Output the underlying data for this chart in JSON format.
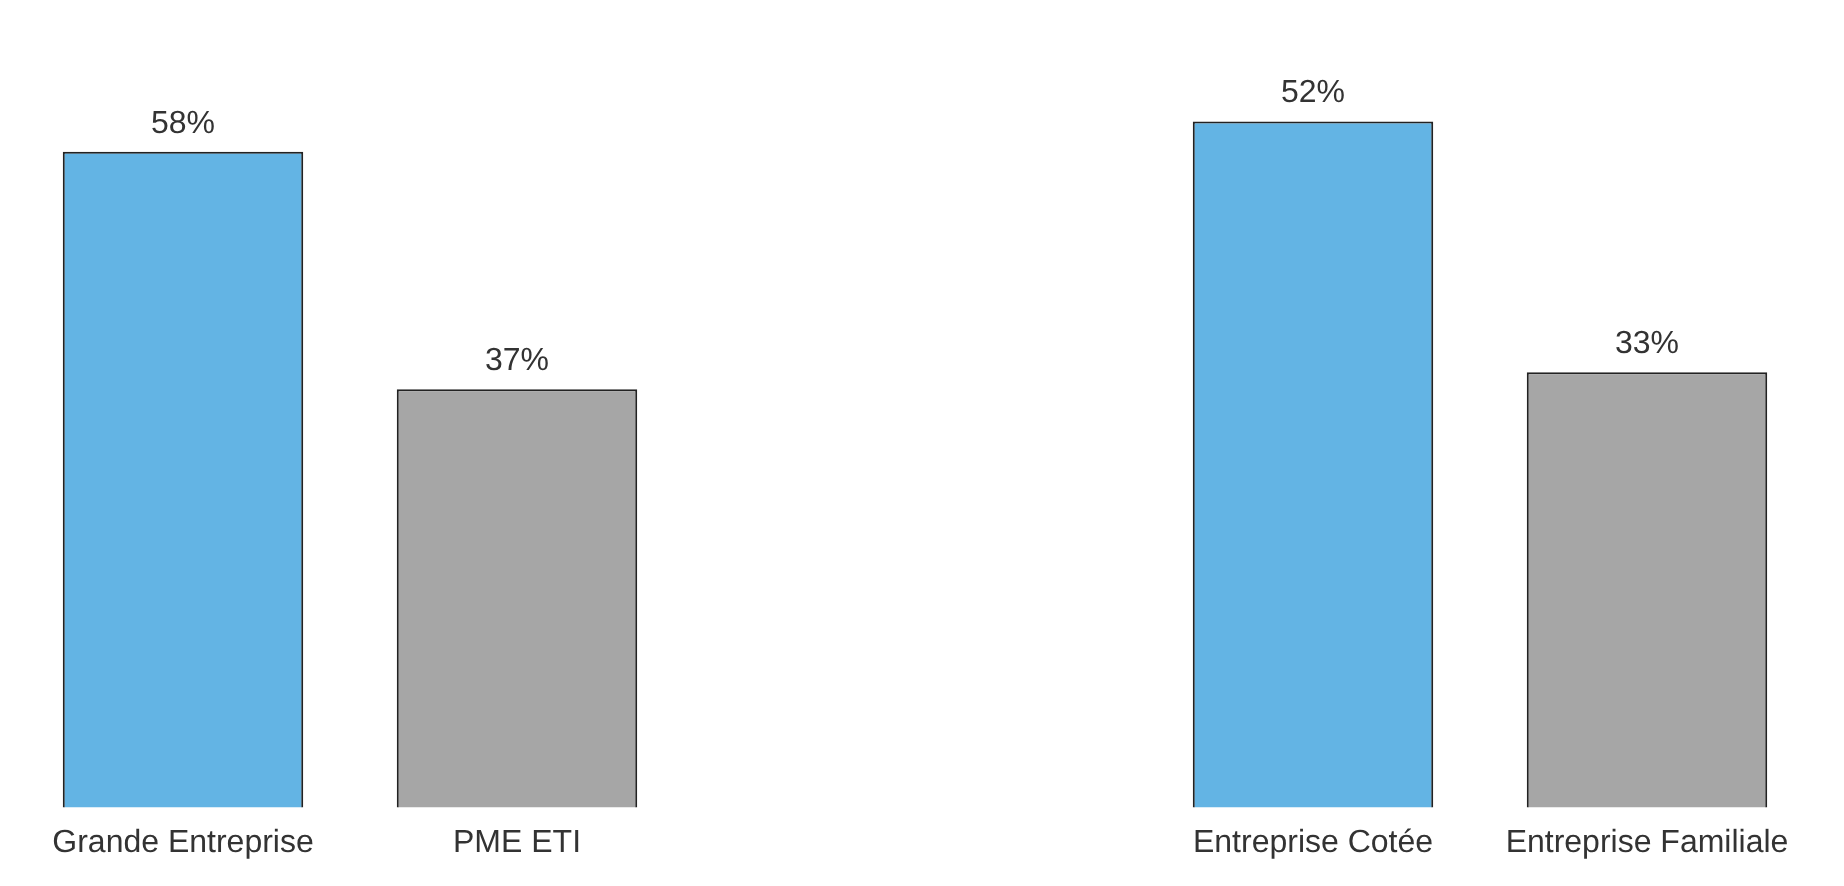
{
  "chart_data": [
    {
      "type": "bar",
      "categories": [
        "Grande Entreprise",
        "PME ETI"
      ],
      "values": [
        58,
        37
      ],
      "colors": [
        "#63b4e4",
        "#a6a6a6"
      ],
      "data_labels": true,
      "value_labels": [
        "58%",
        "37%"
      ],
      "grid": false,
      "legend": false
    },
    {
      "type": "bar",
      "categories": [
        "Entreprise Cotée",
        "Entreprise Familiale"
      ],
      "values": [
        52,
        33
      ],
      "colors": [
        "#63b4e4",
        "#a6a6a6"
      ],
      "data_labels": true,
      "value_labels": [
        "52%",
        "33%"
      ],
      "grid": false,
      "legend": false
    }
  ]
}
